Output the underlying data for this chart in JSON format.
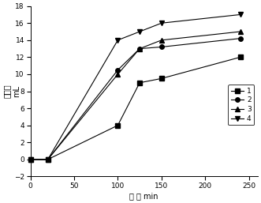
{
  "series": {
    "1": {
      "x": [
        0,
        20,
        100,
        125,
        150,
        240
      ],
      "y": [
        0,
        0,
        4,
        9,
        9.5,
        12
      ],
      "marker": "s",
      "label": "1"
    },
    "2": {
      "x": [
        0,
        20,
        100,
        125,
        150,
        240
      ],
      "y": [
        0,
        0,
        10.5,
        13,
        13.2,
        14.2
      ],
      "marker": "o",
      "label": "2"
    },
    "3": {
      "x": [
        0,
        20,
        100,
        125,
        150,
        240
      ],
      "y": [
        0,
        0,
        10,
        13,
        14,
        15
      ],
      "marker": "^",
      "label": "3"
    },
    "4": {
      "x": [
        0,
        20,
        100,
        125,
        150,
        240
      ],
      "y": [
        0,
        0,
        14,
        15,
        16,
        17
      ],
      "marker": "v",
      "label": "4"
    }
  },
  "xlabel": "时 间 min",
  "ylabel_line1": "出水量",
  "ylabel_line2": "mL",
  "xlim": [
    0,
    260
  ],
  "ylim": [
    -2,
    18
  ],
  "xticks": [
    0,
    50,
    100,
    150,
    200,
    250
  ],
  "yticks": [
    -2,
    0,
    2,
    4,
    6,
    8,
    10,
    12,
    14,
    16,
    18
  ],
  "line_color": "#000000",
  "marker_size": 4,
  "figsize": [
    3.31,
    2.57
  ],
  "dpi": 100
}
